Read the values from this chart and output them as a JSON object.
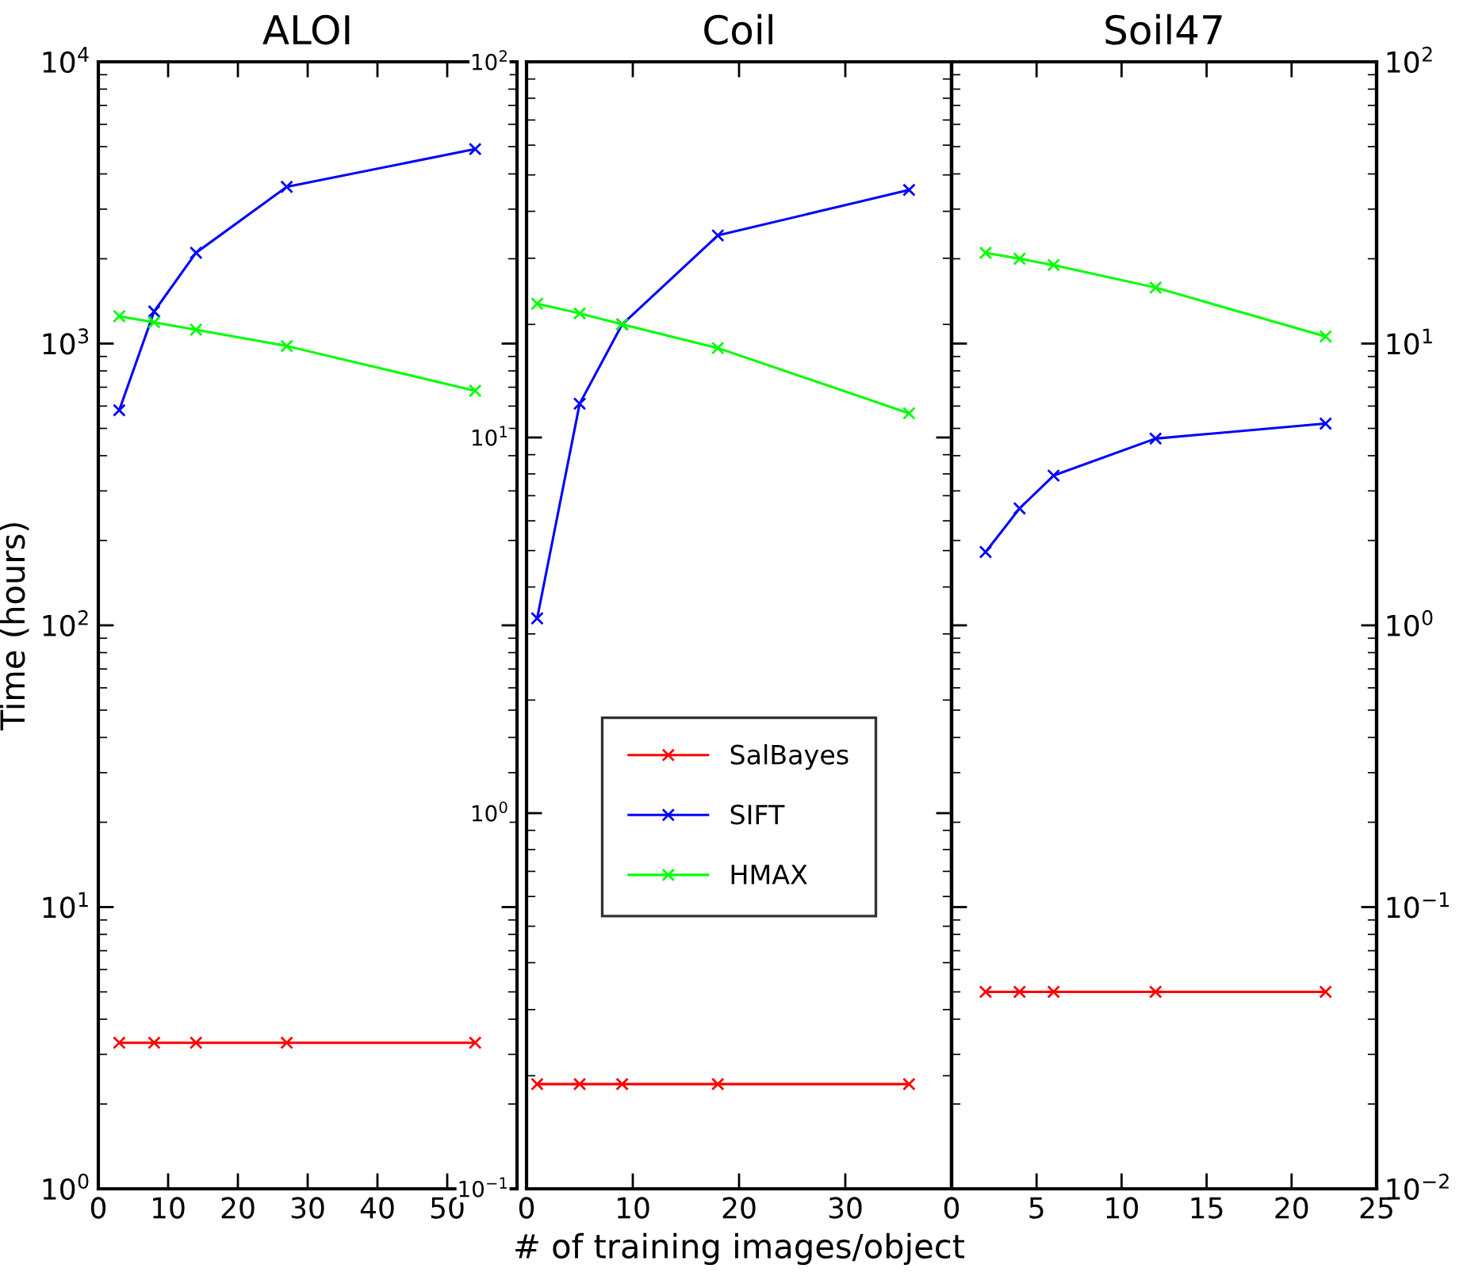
{
  "chart_data": [
    {
      "type": "line",
      "title": "ALOI",
      "ylabel": "Time (hours)",
      "log": "y",
      "marker": "cross",
      "line_style": "solid",
      "grid": false,
      "legend": false,
      "xlim": [
        0,
        60
      ],
      "xticks": [
        0,
        10,
        20,
        30,
        40,
        50
      ],
      "ylim": [
        1,
        10000
      ],
      "yticks": [
        {
          "value": 1,
          "label": "10$^{0}$"
        },
        {
          "value": 10,
          "label": "10$^{1}$"
        },
        {
          "value": 100,
          "label": "10$^{2}$"
        },
        {
          "value": 1000,
          "label": "10$^{3}$"
        },
        {
          "value": 10000,
          "label": "10$^{4}$"
        }
      ],
      "series": [
        {
          "color": "#ff0000",
          "x": [
            3,
            8,
            14,
            27,
            54
          ],
          "values": [
            3.3,
            3.3,
            3.3,
            3.3,
            3.3
          ]
        },
        {
          "color": "#0000ff",
          "x": [
            3,
            8,
            14,
            27,
            54
          ],
          "values": [
            580,
            1300,
            2100,
            3600,
            4900
          ]
        },
        {
          "color": "#00ff00",
          "x": [
            3,
            8,
            14,
            27,
            54
          ],
          "values": [
            1250,
            1190,
            1120,
            980,
            680
          ]
        }
      ]
    },
    {
      "type": "line",
      "title": "Coil",
      "xlabel": "# of training images/object",
      "log": "y",
      "marker": "cross",
      "line_style": "solid",
      "grid": false,
      "legend": "center",
      "xlim": [
        0,
        40
      ],
      "xticks": [
        0,
        10,
        20,
        30
      ],
      "ylim": [
        0.1,
        100
      ],
      "yticks": [
        {
          "value": 0.1,
          "label": "10$^{−1}$"
        },
        {
          "value": 1,
          "label": "10$^{0}$"
        },
        {
          "value": 10,
          "label": "10$^{1}$"
        },
        {
          "value": 100,
          "label": "10$^{2}$"
        }
      ],
      "series": [
        {
          "name": "SalBayes",
          "color": "#ff0000",
          "x": [
            1,
            5,
            9,
            18,
            36
          ],
          "values": [
            0.19,
            0.19,
            0.19,
            0.19,
            0.19
          ]
        },
        {
          "name": "SIFT",
          "color": "#0000ff",
          "x": [
            1,
            5,
            9,
            18,
            36
          ],
          "values": [
            3.3,
            12.3,
            20,
            34.5,
            45.6
          ]
        },
        {
          "name": "HMAX",
          "color": "#00ff00",
          "x": [
            1,
            5,
            9,
            18,
            36
          ],
          "values": [
            22.7,
            21.4,
            20,
            17.3,
            11.6
          ]
        }
      ]
    },
    {
      "type": "line",
      "title": "Soil47",
      "log": "y2",
      "marker": "cross",
      "line_style": "solid",
      "grid": false,
      "legend": false,
      "xlim": [
        0,
        25
      ],
      "xticks": [
        0,
        5,
        10,
        15,
        20,
        25
      ],
      "y2lim": [
        0.01,
        100
      ],
      "y2ticks": [
        {
          "value": 0.01,
          "label": "10$^{−2}$"
        },
        {
          "value": 0.1,
          "label": "10$^{−1}$"
        },
        {
          "value": 1,
          "label": "10$^{0}$"
        },
        {
          "value": 10,
          "label": "10$^{1}$"
        },
        {
          "value": 100,
          "label": "10$^{2}$"
        }
      ],
      "series": [
        {
          "color": "#ff0000",
          "axis": "y2",
          "x": [
            2,
            4,
            6,
            12,
            22
          ],
          "values": [
            0.05,
            0.05,
            0.05,
            0.05,
            0.05
          ]
        },
        {
          "color": "#0000ff",
          "axis": "y2",
          "x": [
            2,
            4,
            6,
            12,
            22
          ],
          "values": [
            1.82,
            2.6,
            3.4,
            4.6,
            5.2
          ]
        },
        {
          "color": "#00ff00",
          "axis": "y2",
          "x": [
            2,
            4,
            6,
            12,
            22
          ],
          "values": [
            21,
            20,
            19,
            15.8,
            10.6
          ]
        }
      ]
    }
  ]
}
